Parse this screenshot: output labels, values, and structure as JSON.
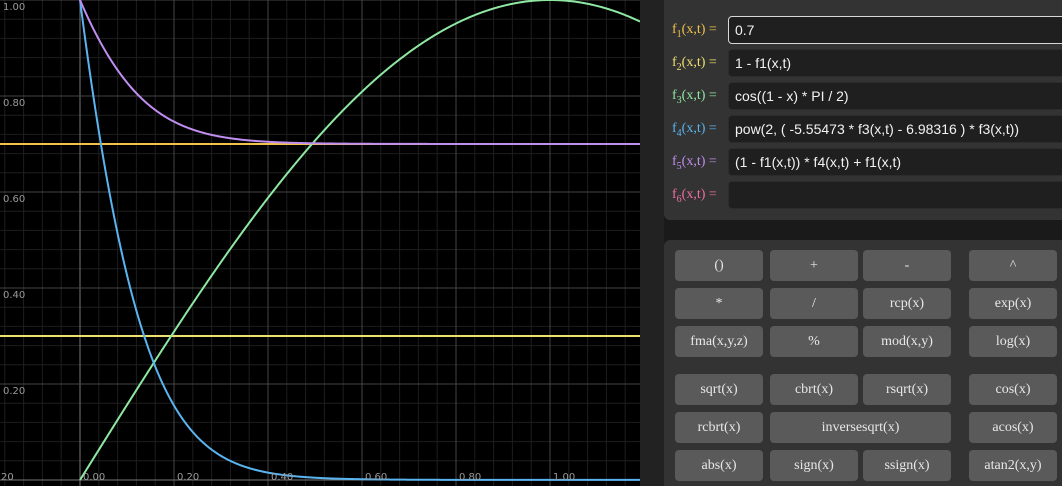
{
  "graph": {
    "x_ticks": [
      "0.00",
      "0.20",
      "0.40",
      "0.60",
      "0.80",
      "1.00"
    ],
    "y_ticks": [
      "1.00",
      "0.80",
      "0.60",
      "0.40",
      "0.20"
    ],
    "corner_label": "20",
    "colors": {
      "background": "#000000",
      "minor_grid": "#1e1e1e",
      "major_grid": "#454545",
      "axis": "#777777"
    }
  },
  "functions": [
    {
      "name": "f",
      "index": "1",
      "args": "(x,t) =",
      "expr": "0.7",
      "color": "#f0c24a",
      "active": true
    },
    {
      "name": "f",
      "index": "2",
      "args": "(x,t) =",
      "expr": "1 - f1(x,t)",
      "color": "#f0e070"
    },
    {
      "name": "f",
      "index": "3",
      "args": "(x,t) =",
      "expr": "cos((1 - x) * PI / 2)",
      "color": "#8fe8a2"
    },
    {
      "name": "f",
      "index": "4",
      "args": "(x,t) =",
      "expr": "pow(2, ( -5.55473 * f3(x,t) - 6.98316 ) * f3(x,t))",
      "color": "#5ab4f0"
    },
    {
      "name": "f",
      "index": "5",
      "args": "(x,t) =",
      "expr": "(1 - f1(x,t)) * f4(x,t) + f1(x,t)",
      "color": "#c08ef0"
    },
    {
      "name": "f",
      "index": "6",
      "args": "(x,t) =",
      "expr": "",
      "color": "#ee6f9e"
    }
  ],
  "keypad": [
    {
      "label": "()",
      "name": "key-parens"
    },
    {
      "label": "+",
      "name": "key-plus"
    },
    {
      "label": "-",
      "name": "key-minus"
    },
    {
      "label": "^",
      "name": "key-caret"
    },
    {
      "label": "*",
      "name": "key-multiply"
    },
    {
      "label": "/",
      "name": "key-divide"
    },
    {
      "label": "rcp(x)",
      "name": "key-rcp"
    },
    {
      "label": "exp(x)",
      "name": "key-exp"
    },
    {
      "label": "fma(x,y,z)",
      "name": "key-fma"
    },
    {
      "label": "%",
      "name": "key-percent"
    },
    {
      "label": "mod(x,y)",
      "name": "key-mod"
    },
    {
      "label": "log(x)",
      "name": "key-log"
    },
    {
      "label": "sqrt(x)",
      "name": "key-sqrt"
    },
    {
      "label": "cbrt(x)",
      "name": "key-cbrt"
    },
    {
      "label": "rsqrt(x)",
      "name": "key-rsqrt"
    },
    {
      "label": "cos(x)",
      "name": "key-cos"
    },
    {
      "label": "rcbrt(x)",
      "name": "key-rcbrt"
    },
    {
      "label": "inversesqrt(x)",
      "name": "key-inversesqrt"
    },
    {
      "label": "acos(x)",
      "name": "key-acos"
    },
    {
      "label": "abs(x)",
      "name": "key-abs"
    },
    {
      "label": "sign(x)",
      "name": "key-sign"
    },
    {
      "label": "ssign(x)",
      "name": "key-ssign"
    },
    {
      "label": "atan2(x,y)",
      "name": "key-atan2"
    }
  ]
}
